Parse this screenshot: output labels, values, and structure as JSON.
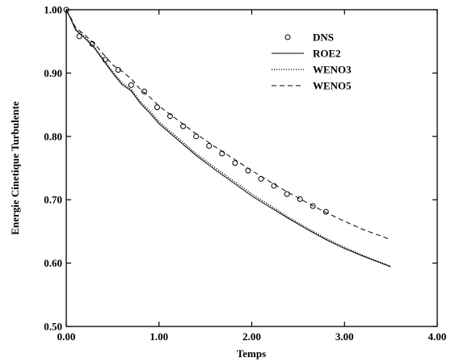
{
  "chart_data": {
    "type": "line",
    "xlabel": "Temps",
    "ylabel": "Energie Cinetique Turbulente",
    "xlim": [
      0,
      4
    ],
    "ylim": [
      0.5,
      1.0
    ],
    "x_ticks": [
      {
        "value": 0,
        "label": "0.00"
      },
      {
        "value": 1,
        "label": "1.00"
      },
      {
        "value": 2,
        "label": "2.00"
      },
      {
        "value": 3,
        "label": "3.00"
      },
      {
        "value": 4,
        "label": "4.00"
      }
    ],
    "y_ticks": [
      {
        "value": 0.5,
        "label": "0.50"
      },
      {
        "value": 0.6,
        "label": "0.60"
      },
      {
        "value": 0.7,
        "label": "0.70"
      },
      {
        "value": 0.8,
        "label": "0.80"
      },
      {
        "value": 0.9,
        "label": "0.90"
      },
      {
        "value": 1.0,
        "label": "1.00"
      }
    ],
    "legend_position": "top-right",
    "grid": false,
    "series": [
      {
        "name": "DNS",
        "style": "circles",
        "color": "#000000",
        "x": [
          0.0,
          0.14,
          0.28,
          0.42,
          0.56,
          0.7,
          0.84,
          0.98,
          1.12,
          1.26,
          1.4,
          1.54,
          1.68,
          1.82,
          1.96,
          2.1,
          2.24,
          2.38,
          2.52,
          2.66,
          2.8
        ],
        "y": [
          1.0,
          0.958,
          0.946,
          0.921,
          0.905,
          0.881,
          0.871,
          0.846,
          0.832,
          0.816,
          0.8,
          0.785,
          0.773,
          0.758,
          0.746,
          0.733,
          0.722,
          0.709,
          0.701,
          0.69,
          0.681
        ]
      },
      {
        "name": "ROE2",
        "style": "solid",
        "color": "#000000",
        "x": [
          0.0,
          0.05,
          0.1,
          0.2,
          0.3,
          0.4,
          0.5,
          0.6,
          0.7,
          0.8,
          0.9,
          1.0,
          1.2,
          1.4,
          1.6,
          1.8,
          2.0,
          2.2,
          2.4,
          2.6,
          2.8,
          3.0,
          3.2,
          3.5
        ],
        "y": [
          1.0,
          0.985,
          0.968,
          0.955,
          0.94,
          0.92,
          0.9,
          0.882,
          0.872,
          0.852,
          0.837,
          0.82,
          0.795,
          0.77,
          0.748,
          0.727,
          0.706,
          0.688,
          0.67,
          0.653,
          0.637,
          0.623,
          0.611,
          0.594
        ]
      },
      {
        "name": "WENO3",
        "style": "dotted",
        "color": "#000000",
        "x": [
          0.0,
          0.05,
          0.1,
          0.2,
          0.3,
          0.4,
          0.5,
          0.6,
          0.7,
          0.8,
          0.9,
          1.0,
          1.2,
          1.4,
          1.6,
          1.8,
          2.0,
          2.2,
          2.4,
          2.6,
          2.8,
          3.0,
          3.2,
          3.5
        ],
        "y": [
          1.0,
          0.986,
          0.97,
          0.957,
          0.942,
          0.922,
          0.902,
          0.885,
          0.874,
          0.855,
          0.84,
          0.823,
          0.798,
          0.773,
          0.751,
          0.73,
          0.709,
          0.691,
          0.672,
          0.655,
          0.639,
          0.625,
          0.612,
          0.595
        ]
      },
      {
        "name": "WENO5",
        "style": "dashed",
        "color": "#000000",
        "x": [
          0.0,
          0.05,
          0.1,
          0.2,
          0.3,
          0.4,
          0.5,
          0.6,
          0.7,
          0.8,
          0.9,
          1.0,
          1.2,
          1.4,
          1.6,
          1.8,
          2.0,
          2.2,
          2.4,
          2.6,
          2.8,
          3.0,
          3.2,
          3.5
        ],
        "y": [
          1.0,
          0.987,
          0.972,
          0.96,
          0.947,
          0.93,
          0.913,
          0.903,
          0.891,
          0.874,
          0.862,
          0.848,
          0.826,
          0.804,
          0.784,
          0.765,
          0.746,
          0.728,
          0.711,
          0.695,
          0.68,
          0.666,
          0.653,
          0.637
        ]
      }
    ]
  }
}
